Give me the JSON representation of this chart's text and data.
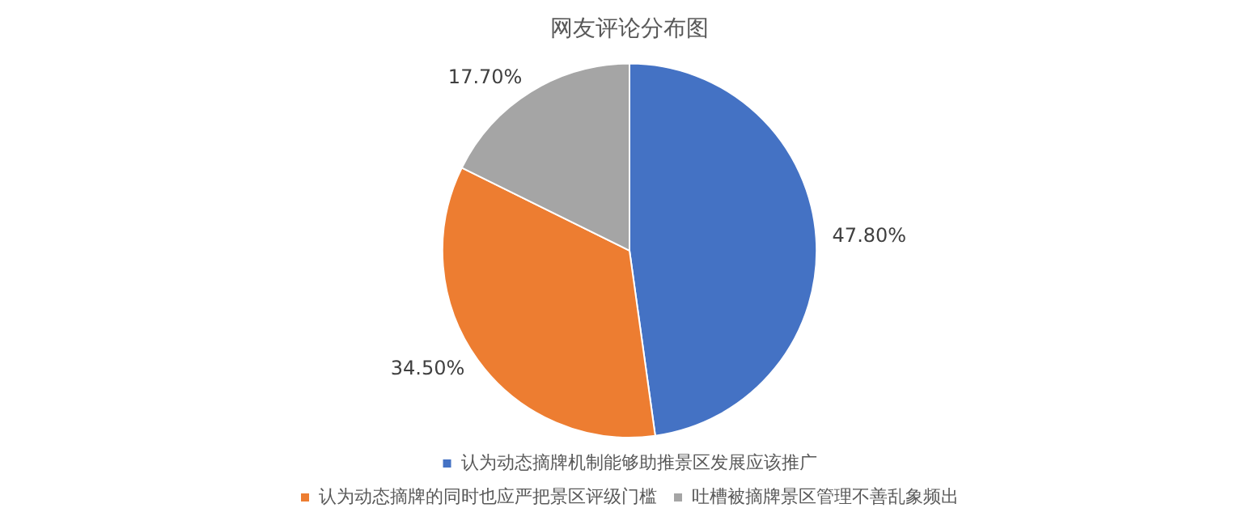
{
  "chart_data": {
    "type": "pie",
    "title": "网友评论分布图",
    "categories": [
      "认为动态摘牌机制能够助推景区发展应该推广",
      "认为动态摘牌的同时也应严把景区评级门槛",
      "吐槽被摘牌景区管理不善乱象频出"
    ],
    "values": [
      47.8,
      34.5,
      17.7
    ],
    "colors": [
      "#4472c4",
      "#ed7d31",
      "#a5a5a5"
    ],
    "value_labels": [
      "47.80%",
      "34.50%",
      "17.70%"
    ],
    "legend": "bottom"
  }
}
